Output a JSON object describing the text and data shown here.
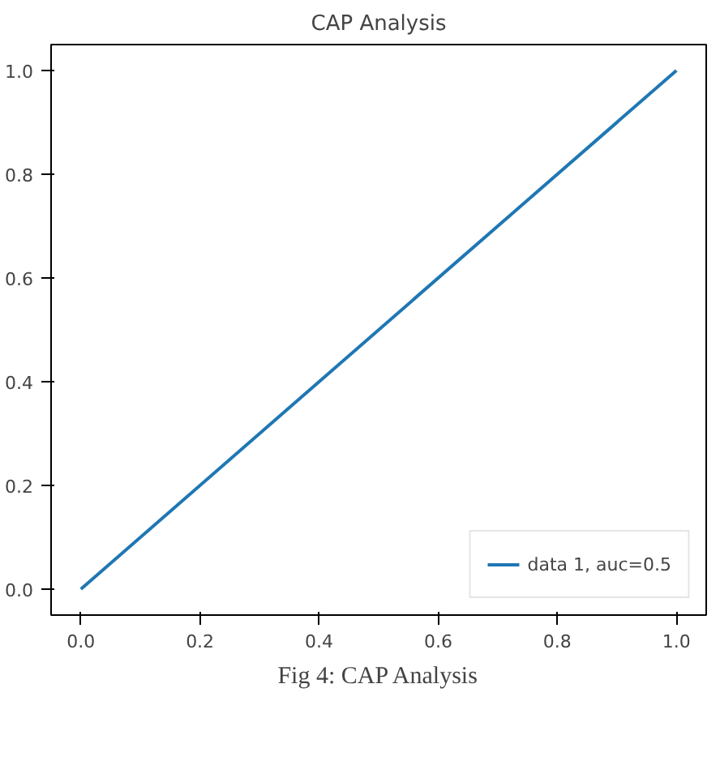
{
  "chart_data": {
    "type": "line",
    "title": "CAP Analysis",
    "x": [
      0,
      1
    ],
    "series": [
      {
        "name": "data 1, auc=0.5",
        "color": "#1f77b4",
        "values": [
          0,
          1
        ]
      }
    ],
    "xlim": [
      -0.05,
      1.05
    ],
    "ylim": [
      -0.05,
      1.05
    ],
    "xticks": [
      {
        "value": 0,
        "label": "0.0"
      },
      {
        "value": 0.2,
        "label": "0.2"
      },
      {
        "value": 0.4,
        "label": "0.4"
      },
      {
        "value": 0.6,
        "label": "0.6"
      },
      {
        "value": 0.8,
        "label": "0.8"
      },
      {
        "value": 1,
        "label": "1.0"
      }
    ],
    "yticks": [
      {
        "value": 0,
        "label": "0.0"
      },
      {
        "value": 0.2,
        "label": "0.2"
      },
      {
        "value": 0.4,
        "label": "0.4"
      },
      {
        "value": 0.6,
        "label": "0.6"
      },
      {
        "value": 0.8,
        "label": "0.8"
      },
      {
        "value": 1,
        "label": "1.0"
      }
    ],
    "legend": "bottom right",
    "grid": false,
    "line_style": "solid",
    "annotations": [
      "Fig 4: CAP Analysis"
    ]
  }
}
